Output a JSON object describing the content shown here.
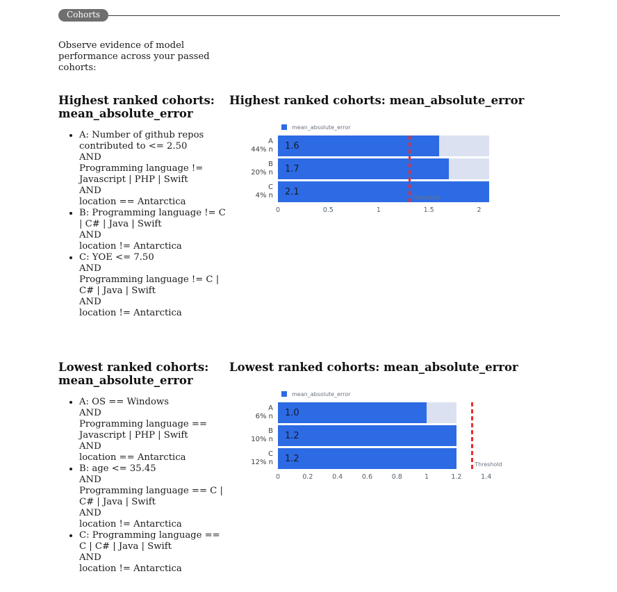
{
  "header": {
    "badge": "Cohorts"
  },
  "intro": "Observe evidence of model performance across your passed cohorts:",
  "sections": [
    {
      "heading": "Highest ranked cohorts: mean_absolute_error",
      "cohorts": [
        "A: Number of github repos contributed to <= 2.50\nAND\nProgramming language != Javascript | PHP | Swift\nAND\nlocation == Antarctica",
        "B: Programming language != C | C# | Java | Swift\nAND\nlocation != Antarctica",
        "C: YOE <= 7.50\nAND\nProgramming language != C | C# | Java | Swift\nAND\nlocation != Antarctica"
      ]
    },
    {
      "heading": "Lowest ranked cohorts: mean_absolute_error",
      "cohorts": [
        "A: OS == Windows\nAND\nProgramming language == Javascript | PHP | Swift\nAND\nlocation == Antarctica",
        "B: age <= 35.45\nAND\nProgramming language == C | C# | Java | Swift\nAND\nlocation != Antarctica",
        "C: Programming language == C | C# | Java | Swift\nAND\nlocation != Antarctica"
      ]
    }
  ],
  "chart_data": [
    {
      "type": "bar",
      "orientation": "horizontal",
      "title": "Highest ranked cohorts: mean_absolute_error",
      "series_name": "mean_absolute_error",
      "categories": [
        "A",
        "B",
        "C"
      ],
      "category_sublabels": [
        "44% n",
        "20% n",
        "4% n"
      ],
      "values": [
        1.6,
        1.7,
        2.1
      ],
      "value_labels": [
        "1.6",
        "1.7",
        "2.1"
      ],
      "xlim": [
        0,
        2.1
      ],
      "axis_max": 2.1,
      "track_max": 2.1,
      "threshold": 1.3,
      "threshold_label": "Threshold",
      "tick_values": [
        0,
        0.5,
        1,
        1.5,
        2
      ],
      "tick_labels": [
        "0",
        "0.5",
        "1",
        "1.5",
        "2"
      ],
      "legend_position": "top-left",
      "grid": false,
      "colors": {
        "bar": "#2d6be4",
        "track": "#dbe1f0",
        "threshold": "#ed2d2d"
      }
    },
    {
      "type": "bar",
      "orientation": "horizontal",
      "title": "Lowest ranked cohorts: mean_absolute_error",
      "series_name": "mean_absolute_error",
      "categories": [
        "A",
        "B",
        "C"
      ],
      "category_sublabels": [
        "6% n",
        "10% n",
        "12% n"
      ],
      "values": [
        1.0,
        1.2,
        1.2
      ],
      "value_labels": [
        "1.0",
        "1.2",
        "1.2"
      ],
      "xlim": [
        0,
        1.42
      ],
      "axis_max": 1.42,
      "track_max": 1.2,
      "threshold": 1.3,
      "threshold_label": "Threshold",
      "tick_values": [
        0,
        0.2,
        0.4,
        0.6,
        0.8,
        1,
        1.2,
        1.4
      ],
      "tick_labels": [
        "0",
        "0.2",
        "0.4",
        "0.6",
        "0.8",
        "1",
        "1.2",
        "1.4"
      ],
      "legend_position": "top-left",
      "grid": false,
      "colors": {
        "bar": "#2d6be4",
        "track": "#dbe1f0",
        "threshold": "#ed2d2d"
      }
    }
  ]
}
